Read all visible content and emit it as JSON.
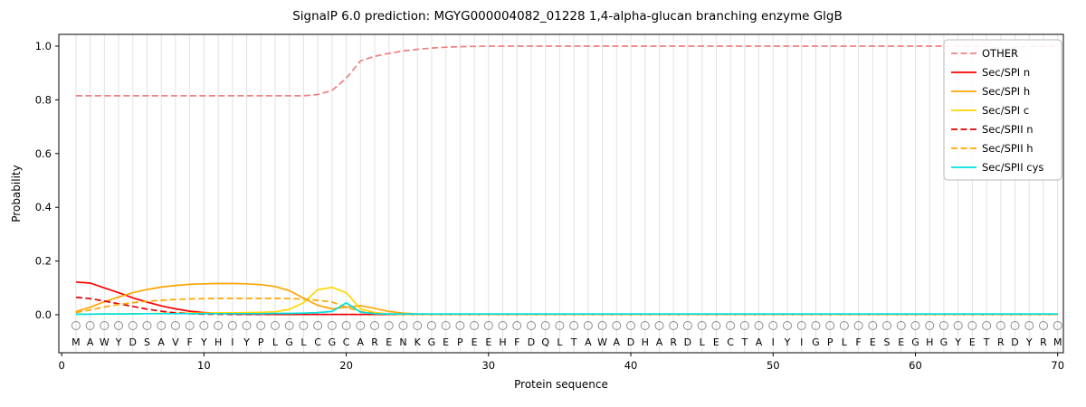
{
  "chart_data": {
    "type": "line",
    "title": "SignalP 6.0 prediction: MGYG000004082_01228 1,4-alpha-glucan branching enzyme GlgB",
    "xlabel": "Protein sequence",
    "ylabel": "Probability",
    "xticks": [
      0,
      10,
      20,
      30,
      40,
      50,
      60,
      70
    ],
    "yticks": [
      0.0,
      0.2,
      0.4,
      0.6,
      0.8,
      1.0
    ],
    "ylim": [
      0,
      1.05
    ],
    "grid": "vertical-per-residue",
    "legend_position": "upper-right",
    "sequence": "MAWYDSAVFYHIYPLGLCGCARENKGEPEEHFDQLTAWADHARDLECTAIYIGPLFESEGHGYETRDYRM",
    "series": [
      {
        "name": "OTHER",
        "color": "#f08080",
        "dash": true,
        "values": [
          0.815,
          0.815,
          0.815,
          0.815,
          0.815,
          0.815,
          0.815,
          0.815,
          0.815,
          0.815,
          0.815,
          0.815,
          0.815,
          0.815,
          0.815,
          0.815,
          0.815,
          0.82,
          0.835,
          0.88,
          0.945,
          0.962,
          0.973,
          0.982,
          0.988,
          0.993,
          0.996,
          0.998,
          0.999,
          1.0,
          1.0,
          1.0,
          1.0,
          1.0,
          1.0,
          1.0,
          1.0,
          1.0,
          1.0,
          1.0,
          1.0,
          1.0,
          1.0,
          1.0,
          1.0,
          1.0,
          1.0,
          1.0,
          1.0,
          1.0,
          1.0,
          1.0,
          1.0,
          1.0,
          1.0,
          1.0,
          1.0,
          1.0,
          1.0,
          1.0,
          1.0,
          1.0,
          1.0,
          1.0,
          1.0,
          0.99,
          0.995,
          1.0,
          1.0,
          1.0
        ]
      },
      {
        "name": "Sec/SPI n",
        "color": "#ff0000",
        "dash": false,
        "values": [
          0.122,
          0.118,
          0.1,
          0.082,
          0.063,
          0.047,
          0.033,
          0.022,
          0.013,
          0.008,
          0.005,
          0.003,
          0.002,
          0.002,
          0.001,
          0.001,
          0.001,
          0.001,
          0.001,
          0.001,
          0.001,
          0.001,
          0.001,
          0.001,
          0.001,
          0.001,
          0.001,
          0.001,
          0.001,
          0.001,
          0.001,
          0.001,
          0.001,
          0.001,
          0.001,
          0.001,
          0.001,
          0.001,
          0.001,
          0.001,
          0.001,
          0.001,
          0.001,
          0.001,
          0.001,
          0.001,
          0.001,
          0.001,
          0.001,
          0.001,
          0.001,
          0.001,
          0.001,
          0.001,
          0.001,
          0.001,
          0.001,
          0.001,
          0.001,
          0.001,
          0.001,
          0.001,
          0.001,
          0.001,
          0.001,
          0.001,
          0.001,
          0.001,
          0.001,
          0.001
        ]
      },
      {
        "name": "Sec/SPI h",
        "color": "#ffa500",
        "dash": false,
        "values": [
          0.012,
          0.028,
          0.048,
          0.066,
          0.082,
          0.094,
          0.103,
          0.109,
          0.113,
          0.115,
          0.116,
          0.116,
          0.115,
          0.112,
          0.105,
          0.09,
          0.062,
          0.035,
          0.022,
          0.028,
          0.034,
          0.024,
          0.012,
          0.006,
          0.003,
          0.002,
          0.001,
          0.001,
          0.001,
          0.001,
          0.001,
          0.001,
          0.001,
          0.001,
          0.001,
          0.001,
          0.001,
          0.001,
          0.001,
          0.001,
          0.001,
          0.001,
          0.001,
          0.001,
          0.001,
          0.001,
          0.001,
          0.001,
          0.001,
          0.001,
          0.001,
          0.001,
          0.001,
          0.001,
          0.001,
          0.001,
          0.001,
          0.001,
          0.001,
          0.001,
          0.001,
          0.001,
          0.001,
          0.001,
          0.001,
          0.001,
          0.001,
          0.001,
          0.001,
          0.001
        ]
      },
      {
        "name": "Sec/SPI c",
        "color": "#ffd700",
        "dash": false,
        "values": [
          0.002,
          0.002,
          0.003,
          0.003,
          0.004,
          0.004,
          0.005,
          0.005,
          0.006,
          0.006,
          0.007,
          0.007,
          0.008,
          0.009,
          0.011,
          0.02,
          0.045,
          0.093,
          0.102,
          0.082,
          0.022,
          0.008,
          0.003,
          0.002,
          0.001,
          0.001,
          0.001,
          0.001,
          0.001,
          0.001,
          0.001,
          0.001,
          0.001,
          0.001,
          0.001,
          0.001,
          0.001,
          0.001,
          0.001,
          0.001,
          0.001,
          0.001,
          0.001,
          0.001,
          0.001,
          0.001,
          0.001,
          0.001,
          0.001,
          0.001,
          0.001,
          0.001,
          0.001,
          0.001,
          0.001,
          0.001,
          0.001,
          0.001,
          0.001,
          0.001,
          0.001,
          0.001,
          0.001,
          0.001,
          0.001,
          0.001,
          0.001,
          0.001,
          0.001,
          0.001
        ]
      },
      {
        "name": "Sec/SPII n",
        "color": "#e00000",
        "dash": true,
        "values": [
          0.065,
          0.06,
          0.051,
          0.041,
          0.031,
          0.021,
          0.013,
          0.007,
          0.004,
          0.002,
          0.002,
          0.001,
          0.001,
          0.001,
          0.001,
          0.001,
          0.001,
          0.001,
          0.001,
          0.001,
          0.001,
          0.001,
          0.001,
          0.001,
          0.001,
          0.001,
          0.001,
          0.001,
          0.001,
          0.001,
          0.001,
          0.001,
          0.001,
          0.001,
          0.001,
          0.001,
          0.001,
          0.001,
          0.001,
          0.001,
          0.001,
          0.001,
          0.001,
          0.001,
          0.001,
          0.001,
          0.001,
          0.001,
          0.001,
          0.001,
          0.001,
          0.001,
          0.001,
          0.001,
          0.001,
          0.001,
          0.001,
          0.001,
          0.001,
          0.001,
          0.001,
          0.001,
          0.001,
          0.001,
          0.001,
          0.001,
          0.001,
          0.001,
          0.001,
          0.001
        ]
      },
      {
        "name": "Sec/SPII h",
        "color": "#ffa500",
        "dash": true,
        "values": [
          0.008,
          0.018,
          0.029,
          0.038,
          0.045,
          0.05,
          0.054,
          0.057,
          0.059,
          0.06,
          0.061,
          0.061,
          0.061,
          0.061,
          0.061,
          0.06,
          0.058,
          0.054,
          0.047,
          0.028,
          0.012,
          0.005,
          0.002,
          0.001,
          0.001,
          0.001,
          0.001,
          0.001,
          0.001,
          0.001,
          0.001,
          0.001,
          0.001,
          0.001,
          0.001,
          0.001,
          0.001,
          0.001,
          0.001,
          0.001,
          0.001,
          0.001,
          0.001,
          0.001,
          0.001,
          0.001,
          0.001,
          0.001,
          0.001,
          0.001,
          0.001,
          0.001,
          0.001,
          0.001,
          0.001,
          0.001,
          0.001,
          0.001,
          0.001,
          0.001,
          0.001,
          0.001,
          0.001,
          0.001,
          0.001,
          0.001,
          0.001,
          0.001,
          0.001,
          0.001
        ]
      },
      {
        "name": "Sec/SPII cys",
        "color": "#00e0e0",
        "dash": false,
        "values": [
          0.002,
          0.002,
          0.003,
          0.003,
          0.003,
          0.004,
          0.004,
          0.004,
          0.004,
          0.004,
          0.004,
          0.004,
          0.004,
          0.004,
          0.005,
          0.005,
          0.006,
          0.008,
          0.012,
          0.044,
          0.01,
          0.004,
          0.003,
          0.003,
          0.003,
          0.003,
          0.003,
          0.003,
          0.003,
          0.003,
          0.003,
          0.003,
          0.003,
          0.003,
          0.003,
          0.003,
          0.003,
          0.003,
          0.003,
          0.003,
          0.003,
          0.003,
          0.003,
          0.003,
          0.003,
          0.003,
          0.003,
          0.003,
          0.003,
          0.003,
          0.003,
          0.003,
          0.003,
          0.003,
          0.003,
          0.003,
          0.003,
          0.003,
          0.003,
          0.003,
          0.003,
          0.003,
          0.003,
          0.003,
          0.003,
          0.003,
          0.003,
          0.003,
          0.003,
          0.003
        ]
      }
    ]
  }
}
